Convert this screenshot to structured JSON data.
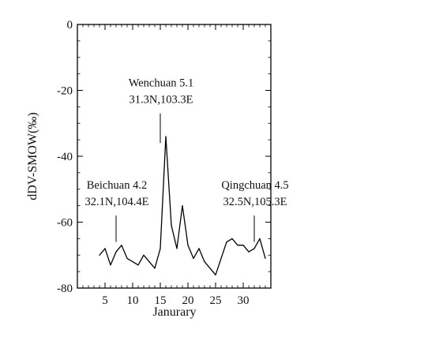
{
  "chart_data": {
    "type": "line",
    "title": "",
    "xlabel": "Janurary",
    "ylabel": "dDV-SMOW(‰)",
    "xlim": [
      0,
      35
    ],
    "ylim": [
      -80,
      0
    ],
    "grid": false,
    "x_ticks": [
      5,
      10,
      15,
      20,
      25,
      30
    ],
    "y_ticks": [
      0,
      -20,
      -40,
      -60,
      -80
    ],
    "series": [
      {
        "x": [
          4,
          5,
          6,
          7,
          8,
          9,
          10,
          11,
          12,
          13,
          14,
          15,
          16,
          17,
          18,
          19,
          20,
          21,
          22,
          23,
          24,
          25,
          26,
          27,
          28,
          29,
          30,
          31,
          32,
          33,
          34
        ],
        "y": [
          -70,
          -68,
          -73,
          -69,
          -67,
          -71,
          -72,
          -73,
          -70,
          -72,
          -74,
          -68,
          -34,
          -61,
          -68,
          -55,
          -67,
          -71,
          -68,
          -72,
          -74,
          -76,
          -71,
          -66,
          -65,
          -67,
          -67,
          -69,
          -68,
          -65,
          -71
        ],
        "color": "#000000"
      }
    ],
    "annotations": [
      {
        "line1": "Beichuan 4.2",
        "line2": "32.1N,104.4E",
        "x": 7,
        "y_from": -66,
        "y_to": -58
      },
      {
        "line1": "Wenchuan 5.1",
        "line2": "31.3N,103.3E",
        "x": 15,
        "y_from": -36,
        "y_to": -27
      },
      {
        "line1": "Qingchuan 4.5",
        "line2": "32.5N,105.3E",
        "x": 32,
        "y_from": -66,
        "y_to": -58
      }
    ]
  }
}
